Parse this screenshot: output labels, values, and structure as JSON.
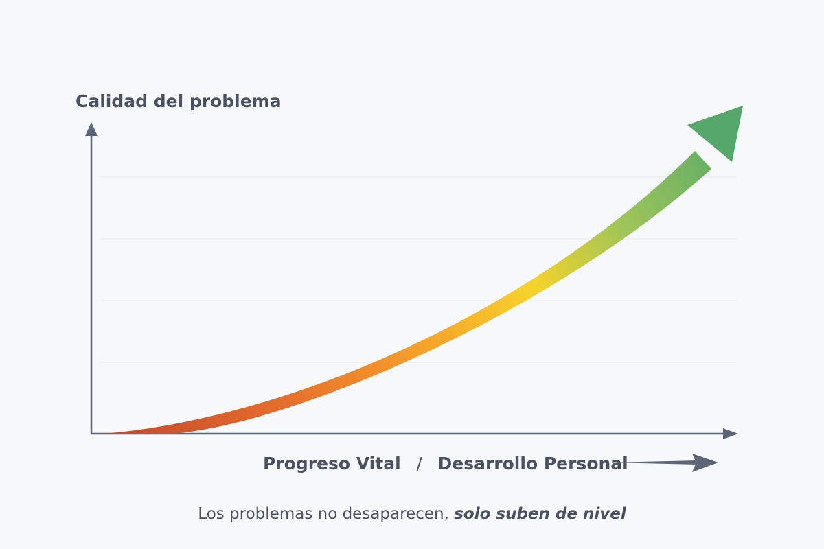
{
  "chart": {
    "y_axis_label": "Calidad del problema",
    "x_axis_label_part1": "Progreso Vital",
    "x_axis_separator": "/",
    "x_axis_label_part2": "Desarrollo Personal",
    "caption_regular": "Los problemas no desaparecen, ",
    "caption_emphasis": "solo suben de nivel"
  },
  "colors": {
    "background": "#f7f8fa",
    "axis": "#5b6576",
    "grid": "#e4e7ec",
    "text": "#4a5262",
    "arrow_start": "#c94b2c",
    "arrow_orange": "#f08a2a",
    "arrow_yellow": "#f6d32a",
    "arrow_end": "#55a86a"
  },
  "icons": {
    "main_arrow": "rising-curved-arrow-icon",
    "x_direction": "right-arrow-icon"
  }
}
